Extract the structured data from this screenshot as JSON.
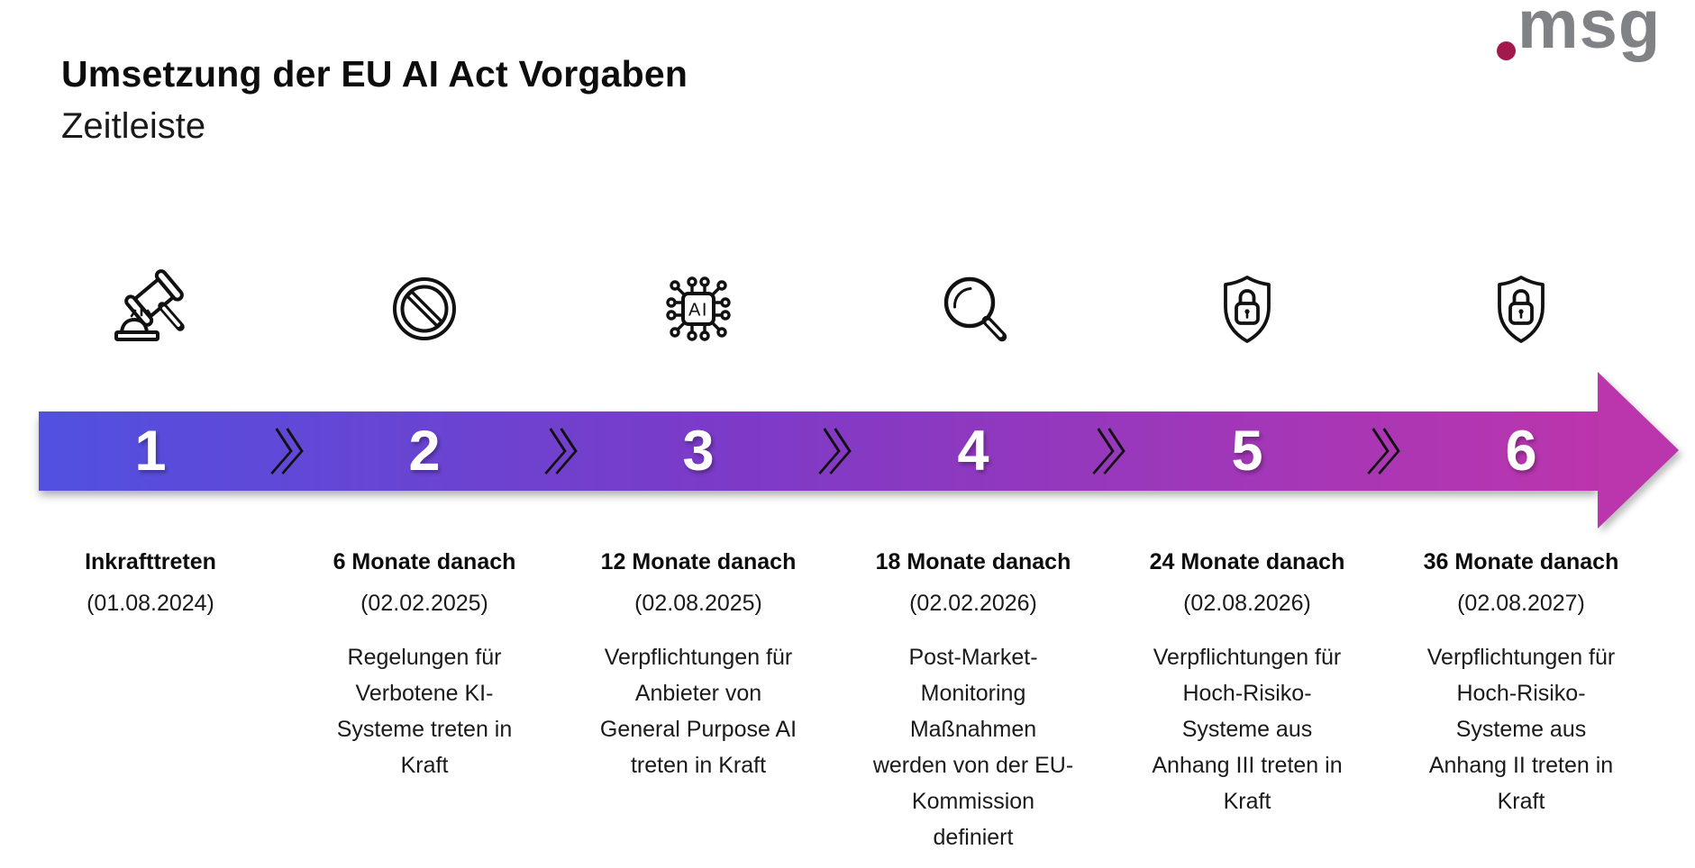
{
  "header": {
    "title": "Umsetzung der EU AI Act Vorgaben",
    "subtitle": "Zeitleiste"
  },
  "logo": {
    "text": "msg",
    "dot_color": "#a3194d",
    "text_color": "#808285"
  },
  "timeline": {
    "gradient": {
      "start": "#5150e0",
      "mid": "#7d3ac7",
      "end": "#bb35ad"
    },
    "steps": [
      {
        "number": "1",
        "icon": "gavel-icon",
        "label": "Inkrafttreten",
        "date": "(01.08.2024)",
        "description": ""
      },
      {
        "number": "2",
        "icon": "prohibited-icon",
        "label": "6 Monate danach",
        "date": "(02.02.2025)",
        "description": "Regelungen für\nVerbotene KI-\nSysteme treten in\nKraft"
      },
      {
        "number": "3",
        "icon": "ai-chip-icon",
        "label": "12 Monate danach",
        "date": "(02.08.2025)",
        "description": "Verpflichtungen für\nAnbieter von\nGeneral Purpose AI\ntreten in Kraft"
      },
      {
        "number": "4",
        "icon": "magnifier-icon",
        "label": "18 Monate danach",
        "date": "(02.02.2026)",
        "description": "Post-Market-\nMonitoring\nMaßnahmen\nwerden von der EU-\nKommission\ndefiniert"
      },
      {
        "number": "5",
        "icon": "shield-lock-icon",
        "label": "24 Monate danach",
        "date": "(02.08.2026)",
        "description": "Verpflichtungen für\nHoch-Risiko-\nSysteme aus\nAnhang III treten in\nKraft"
      },
      {
        "number": "6",
        "icon": "shield-lock-icon",
        "label": "36 Monate danach",
        "date": "(02.08.2027)",
        "description": "Verpflichtungen für\nHoch-Risiko-\nSysteme aus\nAnhang II treten in\nKraft"
      }
    ]
  }
}
